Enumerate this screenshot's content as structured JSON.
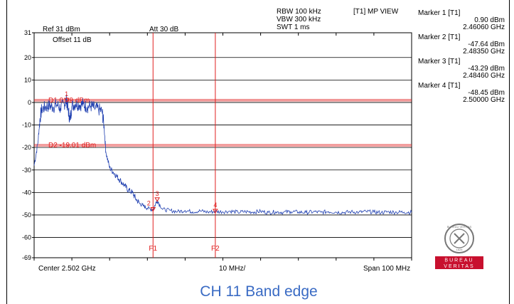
{
  "header": {
    "rbw": "RBW 100 kHz",
    "vbw": "VBW 300 kHz",
    "swt": "SWT 1 ms",
    "trace_mode": "[T1] MP VIEW",
    "ref": "Ref 31 dBm",
    "att": "Att  30 dB",
    "offset": "Offset  11 dB"
  },
  "markers": [
    {
      "label": "Marker 1 [T1]",
      "level": "0.90 dBm",
      "freq": "2.46060 GHz"
    },
    {
      "label": "Marker 2 [T1]",
      "level": "-47.64 dBm",
      "freq": "2.48350 GHz"
    },
    {
      "label": "Marker 3 [T1]",
      "level": "-43.29 dBm",
      "freq": "2.48460 GHz"
    },
    {
      "label": "Marker 4 [T1]",
      "level": "-48.45 dBm",
      "freq": "2.50000 GHz"
    }
  ],
  "footer": {
    "center": "Center 2.502 GHz",
    "div": "10 MHz/",
    "span": "Span 100 MHz"
  },
  "logo": {
    "ring_text": "BUREAU VERITAS",
    "year": "1828",
    "word1": "BUREAU",
    "word2": "VERITAS",
    "color_red": "#c8102e"
  },
  "caption": "CH 11 Band edge",
  "chart_data": {
    "type": "line",
    "x_unit": "GHz",
    "xlim": [
      2.452,
      2.552
    ],
    "ylim": [
      -69,
      31
    ],
    "yticks": [
      31,
      20,
      10,
      0,
      -10,
      -20,
      -30,
      -40,
      -50,
      -60,
      -69
    ],
    "ytick_labels": [
      "31",
      "20",
      "10",
      "0",
      "-10",
      "-20",
      "-30",
      "-40",
      "-50",
      "-60",
      "-69"
    ],
    "grid": true,
    "hlines": [
      {
        "label": "D1 0.99 dBm",
        "y": 0.99,
        "color": "#e02020"
      },
      {
        "label": "D2 -19.01 dBm",
        "y": -19.01,
        "color": "#e02020"
      }
    ],
    "vlines": [
      {
        "label": "F1",
        "x": 2.4835,
        "color": "#e02020"
      },
      {
        "label": "F2",
        "x": 2.5,
        "color": "#e02020"
      }
    ],
    "marker_points": [
      {
        "label": "1",
        "x": 2.4606,
        "y": 0.9
      },
      {
        "label": "2",
        "x": 2.4835,
        "y": -47.64
      },
      {
        "label": "3",
        "x": 2.4846,
        "y": -43.29
      },
      {
        "label": "4",
        "x": 2.5,
        "y": -48.45
      }
    ],
    "series": [
      {
        "color": "#1f3fb0",
        "points": [
          [
            2.452,
            -28
          ],
          [
            2.453,
            -18
          ],
          [
            2.4535,
            -8
          ],
          [
            2.454,
            -3
          ],
          [
            2.455,
            -2
          ],
          [
            2.456,
            -1.5
          ],
          [
            2.457,
            -2
          ],
          [
            2.458,
            -1
          ],
          [
            2.459,
            -2.5
          ],
          [
            2.46,
            -0.5
          ],
          [
            2.4606,
            0.9
          ],
          [
            2.461,
            -3
          ],
          [
            2.4615,
            -8
          ],
          [
            2.462,
            -1.5
          ],
          [
            2.463,
            -0.5
          ],
          [
            2.464,
            -1
          ],
          [
            2.465,
            -0.8
          ],
          [
            2.466,
            -2
          ],
          [
            2.467,
            -1.5
          ],
          [
            2.468,
            -2.5
          ],
          [
            2.469,
            -3
          ],
          [
            2.47,
            -4
          ],
          [
            2.4705,
            -10
          ],
          [
            2.471,
            -22
          ],
          [
            2.472,
            -29
          ],
          [
            2.473,
            -31
          ],
          [
            2.474,
            -33
          ],
          [
            2.475,
            -35
          ],
          [
            2.476,
            -37
          ],
          [
            2.477,
            -39
          ],
          [
            2.478,
            -40
          ],
          [
            2.479,
            -43
          ],
          [
            2.48,
            -45
          ],
          [
            2.481,
            -46
          ],
          [
            2.482,
            -47
          ],
          [
            2.4835,
            -47.64
          ],
          [
            2.4846,
            -43.29
          ],
          [
            2.486,
            -47.5
          ],
          [
            2.488,
            -48
          ],
          [
            2.49,
            -48.5
          ],
          [
            2.492,
            -48
          ],
          [
            2.494,
            -48.6
          ],
          [
            2.496,
            -48.2
          ],
          [
            2.498,
            -48.7
          ],
          [
            2.5,
            -48.45
          ],
          [
            2.502,
            -48.6
          ],
          [
            2.504,
            -48.3
          ],
          [
            2.506,
            -48.8
          ],
          [
            2.508,
            -48.5
          ],
          [
            2.51,
            -48.7
          ],
          [
            2.512,
            -48.4
          ],
          [
            2.514,
            -48.9
          ],
          [
            2.516,
            -48.6
          ],
          [
            2.518,
            -48.8
          ],
          [
            2.52,
            -48.5
          ],
          [
            2.522,
            -48.7
          ],
          [
            2.524,
            -48.9
          ],
          [
            2.526,
            -48.6
          ],
          [
            2.528,
            -48.8
          ],
          [
            2.53,
            -48.5
          ],
          [
            2.532,
            -48.7
          ],
          [
            2.534,
            -48.9
          ],
          [
            2.536,
            -48.6
          ],
          [
            2.538,
            -48.8
          ],
          [
            2.54,
            -48.5
          ],
          [
            2.542,
            -48.7
          ],
          [
            2.544,
            -48.9
          ],
          [
            2.546,
            -48.6
          ],
          [
            2.548,
            -48.8
          ],
          [
            2.55,
            -48.7
          ],
          [
            2.552,
            -48.8
          ]
        ]
      }
    ]
  }
}
